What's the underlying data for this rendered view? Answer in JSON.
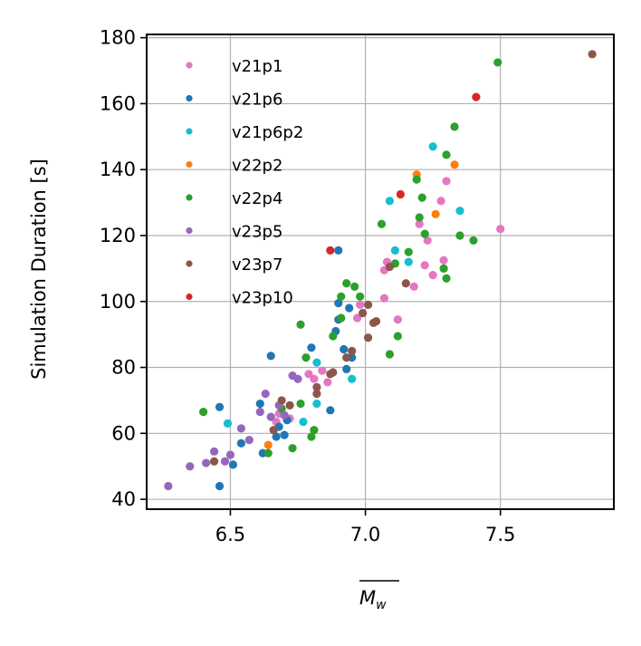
{
  "chart_data": {
    "type": "scatter",
    "title": "",
    "xlabel": "M_w",
    "ylabel": "Simulation Duration [s]",
    "xlim": [
      6.19,
      7.92
    ],
    "ylim": [
      37,
      181
    ],
    "xticks": [
      6.5,
      7.0,
      7.5
    ],
    "xtick_labels": [
      "6.5",
      "7.0",
      "7.5"
    ],
    "yticks": [
      40,
      60,
      80,
      100,
      120,
      140,
      160,
      180
    ],
    "ytick_labels": [
      "40",
      "60",
      "80",
      "100",
      "120",
      "140",
      "160",
      "180"
    ],
    "grid": true,
    "legend_position": "top-left",
    "series": [
      {
        "name": "v21p1",
        "color": "#e377c2",
        "points": [
          [
            7.2,
            123.5
          ],
          [
            7.23,
            118.5
          ],
          [
            7.28,
            130.5
          ],
          [
            7.3,
            136.5
          ],
          [
            7.29,
            112.5
          ],
          [
            7.22,
            111.0
          ],
          [
            7.25,
            108.0
          ],
          [
            7.18,
            104.5
          ],
          [
            7.08,
            112.0
          ],
          [
            7.07,
            109.5
          ],
          [
            7.12,
            94.5
          ],
          [
            7.07,
            101.0
          ],
          [
            6.97,
            95.0
          ],
          [
            7.5,
            122.0
          ],
          [
            6.79,
            78.0
          ],
          [
            6.81,
            76.5
          ],
          [
            6.86,
            75.5
          ],
          [
            6.84,
            79.0
          ],
          [
            6.68,
            66.0
          ],
          [
            6.72,
            64.5
          ],
          [
            6.67,
            63.5
          ],
          [
            6.98,
            99.0
          ]
        ]
      },
      {
        "name": "v21p6",
        "color": "#1f77b4",
        "points": [
          [
            6.9,
            115.5
          ],
          [
            6.94,
            98.0
          ],
          [
            6.9,
            99.5
          ],
          [
            6.9,
            94.5
          ],
          [
            6.89,
            91.0
          ],
          [
            6.92,
            85.5
          ],
          [
            6.95,
            83.0
          ],
          [
            6.8,
            86.0
          ],
          [
            6.93,
            79.5
          ],
          [
            6.65,
            83.5
          ],
          [
            6.87,
            67.0
          ],
          [
            6.61,
            69.0
          ],
          [
            6.71,
            64.0
          ],
          [
            6.68,
            62.0
          ],
          [
            6.7,
            59.5
          ],
          [
            6.67,
            59.0
          ],
          [
            6.54,
            57.0
          ],
          [
            6.62,
            54.0
          ],
          [
            6.51,
            50.5
          ],
          [
            6.46,
            44.0
          ],
          [
            6.46,
            68.0
          ]
        ]
      },
      {
        "name": "v21p6p2",
        "color": "#17becf",
        "points": [
          [
            7.25,
            147.0
          ],
          [
            7.09,
            130.5
          ],
          [
            7.35,
            127.5
          ],
          [
            7.11,
            115.5
          ],
          [
            7.16,
            112.0
          ],
          [
            6.82,
            81.5
          ],
          [
            6.95,
            76.5
          ],
          [
            6.82,
            69.0
          ],
          [
            6.77,
            63.5
          ],
          [
            6.49,
            63.0
          ]
        ]
      },
      {
        "name": "v22p2",
        "color": "#ff7f0e",
        "points": [
          [
            7.19,
            138.5
          ],
          [
            7.33,
            141.5
          ],
          [
            7.26,
            126.5
          ],
          [
            6.64,
            56.5
          ]
        ]
      },
      {
        "name": "v22p4",
        "color": "#2ca02c",
        "points": [
          [
            7.49,
            172.5
          ],
          [
            7.33,
            153.0
          ],
          [
            7.3,
            144.5
          ],
          [
            7.19,
            137.0
          ],
          [
            7.21,
            131.5
          ],
          [
            7.06,
            123.5
          ],
          [
            7.2,
            125.5
          ],
          [
            7.22,
            120.5
          ],
          [
            7.35,
            120.0
          ],
          [
            7.4,
            118.5
          ],
          [
            7.16,
            115.0
          ],
          [
            7.11,
            111.5
          ],
          [
            7.29,
            110.0
          ],
          [
            7.3,
            107.0
          ],
          [
            6.93,
            105.5
          ],
          [
            6.96,
            104.5
          ],
          [
            6.91,
            101.5
          ],
          [
            6.98,
            101.5
          ],
          [
            6.91,
            95.0
          ],
          [
            6.76,
            93.0
          ],
          [
            6.88,
            89.5
          ],
          [
            7.12,
            89.5
          ],
          [
            7.09,
            84.0
          ],
          [
            6.78,
            83.0
          ],
          [
            6.4,
            66.5
          ],
          [
            6.76,
            69.0
          ],
          [
            6.69,
            67.5
          ],
          [
            6.81,
            61.0
          ],
          [
            6.8,
            59.0
          ],
          [
            6.73,
            55.5
          ],
          [
            6.64,
            54.0
          ]
        ]
      },
      {
        "name": "v23p5",
        "color": "#9467bd",
        "points": [
          [
            6.73,
            77.5
          ],
          [
            6.75,
            76.5
          ],
          [
            6.63,
            72.0
          ],
          [
            6.68,
            68.5
          ],
          [
            6.65,
            65.0
          ],
          [
            6.7,
            65.5
          ],
          [
            6.61,
            66.5
          ],
          [
            6.54,
            61.5
          ],
          [
            6.57,
            58.0
          ],
          [
            6.44,
            54.5
          ],
          [
            6.5,
            53.5
          ],
          [
            6.41,
            51.0
          ],
          [
            6.48,
            51.5
          ],
          [
            6.35,
            50.0
          ],
          [
            6.27,
            44.0
          ]
        ]
      },
      {
        "name": "v23p7",
        "color": "#8c564b",
        "points": [
          [
            7.84,
            175.0
          ],
          [
            7.09,
            110.5
          ],
          [
            7.15,
            105.5
          ],
          [
            7.01,
            99.0
          ],
          [
            6.99,
            96.5
          ],
          [
            7.04,
            94.0
          ],
          [
            7.03,
            93.5
          ],
          [
            7.01,
            89.0
          ],
          [
            6.95,
            85.0
          ],
          [
            6.93,
            83.0
          ],
          [
            6.88,
            78.5
          ],
          [
            6.82,
            74.0
          ],
          [
            6.82,
            72.0
          ],
          [
            6.69,
            70.0
          ],
          [
            6.72,
            68.5
          ],
          [
            6.66,
            61.0
          ],
          [
            6.44,
            51.5
          ],
          [
            6.87,
            78.0
          ]
        ]
      },
      {
        "name": "v23p10",
        "color": "#d62728",
        "points": [
          [
            7.41,
            162.0
          ],
          [
            7.13,
            132.5
          ],
          [
            6.87,
            115.5
          ]
        ]
      }
    ]
  }
}
